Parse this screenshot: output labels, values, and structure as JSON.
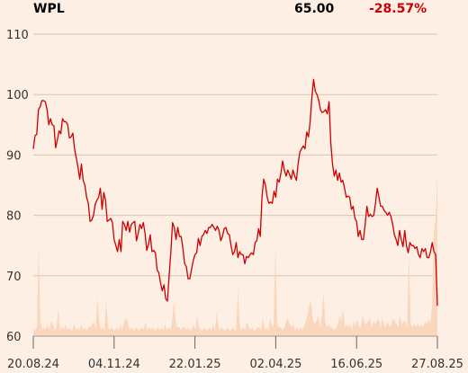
{
  "header": {
    "ticker": "WPL",
    "price": "65.00",
    "change": "-28.57%"
  },
  "colors": {
    "background": "#fdefe3",
    "price_line": "#cc0000",
    "volume": "#fad6bd",
    "grid": "#d9c2b2",
    "negative": "#cc0000"
  },
  "chart_data": {
    "type": "line",
    "ylim": [
      60,
      110
    ],
    "yticks": [
      60,
      70,
      80,
      90,
      100,
      110
    ],
    "xticks": [
      "20.08.24",
      "04.11.24",
      "22.01.25",
      "02.04.25",
      "16.06.25",
      "27.08.25"
    ],
    "grid": true,
    "series": [
      {
        "values": [
          91.0,
          93.2,
          93.4,
          97.5,
          98.0,
          99.0,
          99.0,
          98.8,
          97.5,
          95.0,
          96.0,
          95.0,
          94.8,
          91.2,
          92.5,
          94.0,
          93.5,
          96.0,
          95.5,
          95.5,
          95.0,
          92.8,
          93.0,
          93.6,
          91.0,
          89.5,
          88.0,
          86.0,
          88.5,
          85.8,
          85.0,
          83.0,
          82.0,
          79.0,
          79.2,
          80.0,
          81.8,
          82.5,
          83.0,
          84.5,
          81.0,
          83.8,
          82.5,
          79.0,
          79.2,
          79.5,
          78.8,
          76.0,
          75.0,
          74.0,
          76.0,
          74.0,
          79.0,
          78.5,
          77.5,
          79.0,
          77.2,
          78.5,
          78.8,
          79.0,
          75.8,
          77.0,
          78.5,
          77.8,
          78.8,
          77.0,
          74.2,
          75.2,
          76.8,
          74.0,
          74.2,
          73.8,
          71.0,
          70.5,
          68.8,
          67.5,
          68.5,
          66.2,
          65.8,
          70.0,
          74.0,
          78.8,
          78.0,
          76.0,
          78.0,
          76.5,
          76.5,
          74.5,
          72.0,
          71.5,
          69.5,
          69.5,
          71.0,
          72.5,
          73.5,
          73.8,
          76.2,
          75.0,
          76.5,
          76.8,
          77.5,
          77.0,
          78.0,
          78.0,
          78.5,
          78.0,
          77.5,
          78.2,
          77.5,
          75.8,
          76.5,
          77.8,
          78.0,
          77.0,
          76.8,
          75.0,
          73.5,
          74.0,
          75.5,
          73.0,
          74.0,
          73.5,
          73.5,
          72.0,
          73.2,
          73.0,
          73.5,
          73.8,
          73.5,
          75.5,
          75.8,
          77.8,
          76.5,
          83.0,
          86.0,
          85.0,
          83.0,
          82.0,
          82.2,
          82.0,
          84.0,
          83.0,
          86.0,
          85.5,
          87.0,
          89.0,
          87.5,
          86.5,
          87.5,
          86.8,
          86.0,
          87.5,
          86.5,
          85.8,
          88.5,
          90.5,
          91.0,
          91.5,
          91.0,
          93.8,
          93.0,
          95.5,
          99.5,
          102.5,
          100.5,
          100.0,
          99.0,
          97.5,
          97.0,
          97.2,
          97.5,
          96.8,
          98.8,
          92.0,
          88.5,
          86.5,
          87.5,
          85.8,
          87.0,
          85.5,
          85.8,
          84.5,
          83.0,
          83.2,
          83.0,
          81.0,
          81.5,
          79.5,
          79.0,
          76.5,
          77.5,
          76.0,
          76.0,
          78.5,
          81.5,
          79.8,
          80.2,
          79.8,
          80.0,
          82.0,
          84.5,
          83.0,
          81.5,
          81.5,
          80.8,
          80.5,
          80.0,
          80.5,
          79.8,
          78.5,
          76.8,
          76.0,
          75.0,
          77.5,
          76.0,
          74.8,
          77.5,
          75.0,
          73.8,
          75.5,
          75.0,
          75.0,
          74.5,
          74.8,
          73.5,
          73.0,
          74.5,
          74.0,
          74.5,
          73.0,
          73.0,
          74.0,
          75.5,
          74.0,
          73.5,
          65.0
        ]
      },
      {
        "type": "area",
        "values": [
          0.02,
          0.02,
          0.03,
          0.3,
          0.05,
          0.02,
          0.03,
          0.02,
          0.04,
          0.02,
          0.05,
          0.04,
          0.02,
          0.03,
          0.09,
          0.02,
          0.03,
          0.02,
          0.04,
          0.02,
          0.03,
          0.02,
          0.02,
          0.04,
          0.02,
          0.03,
          0.02,
          0.04,
          0.02,
          0.03,
          0.02,
          0.03,
          0.03,
          0.04,
          0.05,
          0.02,
          0.13,
          0.05,
          0.02,
          0.03,
          0.02,
          0.12,
          0.03,
          0.02,
          0.03,
          0.02,
          0.02,
          0.03,
          0.02,
          0.04,
          0.02,
          0.05,
          0.06,
          0.05,
          0.02,
          0.03,
          0.02,
          0.02,
          0.03,
          0.02,
          0.02,
          0.03,
          0.02,
          0.05,
          0.02,
          0.03,
          0.02,
          0.03,
          0.02,
          0.02,
          0.03,
          0.02,
          0.03,
          0.02,
          0.04,
          0.02,
          0.03,
          0.02,
          0.05,
          0.12,
          0.05,
          0.03,
          0.03,
          0.02,
          0.03,
          0.03,
          0.02,
          0.03,
          0.02,
          0.02,
          0.04,
          0.02,
          0.07,
          0.03,
          0.02,
          0.02,
          0.03,
          0.02,
          0.02,
          0.03,
          0.02,
          0.04,
          0.02,
          0.08,
          0.03,
          0.02,
          0.03,
          0.02,
          0.02,
          0.03,
          0.02,
          0.02,
          0.03,
          0.02,
          0.02,
          0.16,
          0.03,
          0.02,
          0.03,
          0.02,
          0.05,
          0.03,
          0.02,
          0.03,
          0.02,
          0.02,
          0.03,
          0.03,
          0.02,
          0.06,
          0.02,
          0.03,
          0.02,
          0.06,
          0.04,
          0.03,
          0.31,
          0.04,
          0.03,
          0.03,
          0.02,
          0.03,
          0.05,
          0.06,
          0.04,
          0.03,
          0.04,
          0.02,
          0.03,
          0.02,
          0.03,
          0.02,
          0.03,
          0.05,
          0.07,
          0.1,
          0.12,
          0.06,
          0.04,
          0.05,
          0.07,
          0.03,
          0.06,
          0.15,
          0.05,
          0.03,
          0.04,
          0.03,
          0.03,
          0.02,
          0.03,
          0.04,
          0.07,
          0.05,
          0.09,
          0.03,
          0.04,
          0.03,
          0.04,
          0.02,
          0.05,
          0.03,
          0.06,
          0.03,
          0.03,
          0.07,
          0.05,
          0.04,
          0.05,
          0.06,
          0.03,
          0.05,
          0.04,
          0.05,
          0.06,
          0.03,
          0.06,
          0.04,
          0.03,
          0.05,
          0.03,
          0.04,
          0.06,
          0.05,
          0.04,
          0.03,
          0.07,
          0.04,
          0.05,
          0.05,
          0.03,
          0.28,
          0.04,
          0.03,
          0.04,
          0.03,
          0.04,
          0.03,
          0.04,
          0.03,
          0.05,
          0.04,
          0.06,
          0.04,
          0.1,
          0.35,
          0.4,
          0.55
        ]
      }
    ]
  }
}
